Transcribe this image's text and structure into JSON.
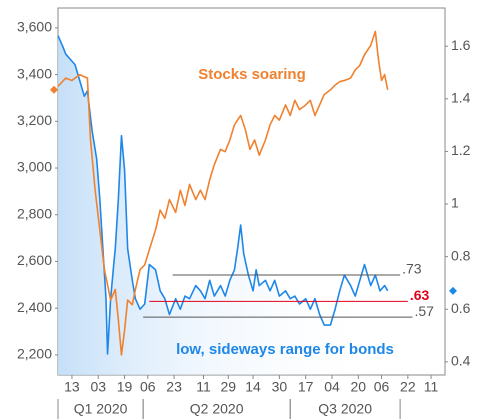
{
  "chart_data": {
    "type": "line",
    "annotations": [
      {
        "text": "Stocks soaring",
        "color": "#f0812f"
      },
      {
        "text": "low, sideways range for bonds",
        "color": "#1e87e8"
      }
    ],
    "xlim": [
      0,
      250
    ],
    "xticks": [
      {
        "value": 9,
        "label": "13"
      },
      {
        "value": 26,
        "label": "03"
      },
      {
        "value": 43,
        "label": "19"
      },
      {
        "value": 58,
        "label": "06"
      },
      {
        "value": 75,
        "label": "23"
      },
      {
        "value": 94,
        "label": "11"
      },
      {
        "value": 110,
        "label": "29"
      },
      {
        "value": 126,
        "label": "14"
      },
      {
        "value": 143,
        "label": "30"
      },
      {
        "value": 160,
        "label": "17"
      },
      {
        "value": 177,
        "label": "04"
      },
      {
        "value": 194,
        "label": "20"
      },
      {
        "value": 209,
        "label": "06"
      },
      {
        "value": 226,
        "label": "22"
      },
      {
        "value": 241,
        "label": "11"
      }
    ],
    "x_groups": [
      {
        "label": "Q1 2020",
        "start": 0,
        "end": 55
      },
      {
        "label": "Q2 2020",
        "start": 55,
        "end": 150
      },
      {
        "label": "Q3 2020",
        "start": 150,
        "end": 221
      }
    ],
    "ylim": [
      2114,
      3668
    ],
    "yticks": [
      {
        "value": 2200,
        "label": "2,200"
      },
      {
        "value": 2400,
        "label": "2,400"
      },
      {
        "value": 2600,
        "label": "2,600"
      },
      {
        "value": 2800,
        "label": "2,800"
      },
      {
        "value": 3000,
        "label": "3,000"
      },
      {
        "value": 3200,
        "label": "3,200"
      },
      {
        "value": 3400,
        "label": "3,400"
      },
      {
        "value": 3600,
        "label": "3,600"
      }
    ],
    "y2lim": [
      0.35,
      1.73
    ],
    "y2ticks": [
      0.4,
      0.6,
      0.8,
      1,
      1.2,
      1.4,
      1.6
    ],
    "reference_lines": [
      {
        "value": 0.73,
        "label": ".73",
        "color": "#555555",
        "start": 74,
        "end": 221
      },
      {
        "value": 0.63,
        "label": ".63",
        "color": "#e0001b",
        "start": 59,
        "end": 226
      },
      {
        "value": 0.57,
        "label": ".57",
        "color": "#555555",
        "start": 55,
        "end": 229
      }
    ],
    "series": [
      {
        "name": "Stocks",
        "color": "#f0812f",
        "axis": "y",
        "x": [
          0,
          5,
          9,
          14,
          19,
          21,
          24,
          27,
          30,
          34,
          37,
          39,
          41,
          43,
          45,
          48,
          50,
          53,
          56,
          59,
          63,
          66,
          69,
          72,
          76,
          79,
          82,
          85,
          89,
          92,
          95,
          98,
          101,
          105,
          108,
          111,
          114,
          118,
          121,
          124,
          127,
          130,
          134,
          137,
          140,
          143,
          147,
          150,
          153,
          156,
          160,
          163,
          166,
          169,
          172,
          176,
          179,
          182,
          185,
          189,
          192,
          195,
          198,
          202,
          205,
          207,
          209,
          211,
          213
        ],
        "values": [
          3350,
          3385,
          3375,
          3400,
          3385,
          3120,
          2905,
          2735,
          2565,
          2435,
          2480,
          2350,
          2200,
          2305,
          2435,
          2415,
          2480,
          2565,
          2585,
          2650,
          2735,
          2820,
          2785,
          2865,
          2810,
          2905,
          2840,
          2930,
          2865,
          2905,
          2865,
          2950,
          3015,
          3080,
          3070,
          3120,
          3185,
          3225,
          3165,
          3080,
          3120,
          3055,
          3120,
          3185,
          3225,
          3205,
          3270,
          3225,
          3290,
          3250,
          3270,
          3290,
          3225,
          3270,
          3315,
          3335,
          3355,
          3370,
          3375,
          3385,
          3420,
          3440,
          3485,
          3525,
          3585,
          3465,
          3375,
          3400,
          3335
        ]
      },
      {
        "name": "Bonds",
        "color": "#1e87e8",
        "axis": "y2",
        "x": [
          0,
          3,
          5,
          8,
          11,
          14,
          17,
          19,
          22,
          25,
          27,
          29,
          31,
          32,
          34,
          36,
          37,
          39,
          41,
          43,
          45,
          48,
          50,
          53,
          56,
          59,
          63,
          66,
          69,
          72,
          76,
          79,
          82,
          85,
          89,
          92,
          95,
          98,
          101,
          105,
          108,
          111,
          114,
          116,
          118,
          120,
          123,
          126,
          128,
          130,
          134,
          137,
          140,
          143,
          147,
          150,
          153,
          156,
          160,
          163,
          166,
          169,
          172,
          176,
          179,
          182,
          185,
          189,
          192,
          195,
          198,
          202,
          205,
          208,
          211,
          213
        ],
        "values": [
          1.64,
          1.6,
          1.57,
          1.55,
          1.53,
          1.47,
          1.41,
          1.43,
          1.28,
          1.17,
          1.02,
          0.83,
          0.64,
          0.43,
          0.64,
          0.77,
          0.83,
          1.02,
          1.26,
          1.13,
          0.83,
          0.71,
          0.64,
          0.6,
          0.62,
          0.77,
          0.75,
          0.67,
          0.64,
          0.58,
          0.64,
          0.6,
          0.65,
          0.64,
          0.69,
          0.67,
          0.64,
          0.71,
          0.65,
          0.69,
          0.65,
          0.71,
          0.75,
          0.83,
          0.92,
          0.81,
          0.73,
          0.67,
          0.75,
          0.69,
          0.71,
          0.67,
          0.71,
          0.65,
          0.67,
          0.64,
          0.65,
          0.62,
          0.64,
          0.6,
          0.64,
          0.58,
          0.54,
          0.54,
          0.6,
          0.67,
          0.73,
          0.69,
          0.65,
          0.71,
          0.77,
          0.69,
          0.73,
          0.67,
          0.69,
          0.67
        ]
      }
    ]
  }
}
